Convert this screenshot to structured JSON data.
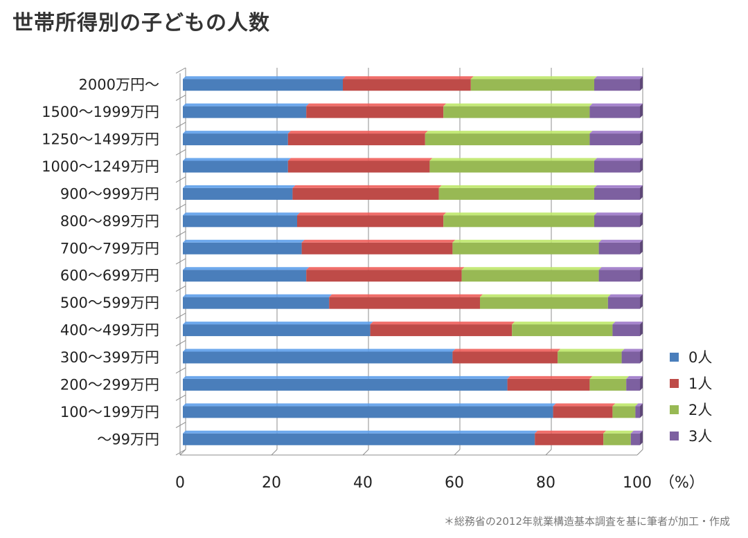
{
  "chart_data": {
    "type": "bar",
    "stacked": true,
    "orientation": "horizontal",
    "title": "世帯所得別の子どもの人数",
    "unit_label": "（%）",
    "xlim": [
      0,
      100
    ],
    "x_ticks": [
      "0",
      "20",
      "40",
      "60",
      "80",
      "100"
    ],
    "grid": true,
    "legend_position": "right",
    "categories": [
      "2000万円～",
      "1500～1999万円",
      "1250～1499万円",
      "1000～1249万円",
      "900～999万円",
      "800～899万円",
      "700～799万円",
      "600～699万円",
      "500～599万円",
      "400～499万円",
      "300～399万円",
      "200～299万円",
      "100～199万円",
      "～99万円"
    ],
    "series": [
      {
        "name": "0人",
        "color": "#4a7ebb",
        "values": [
          35,
          27,
          23,
          23,
          24,
          25,
          26,
          27,
          32,
          41,
          59,
          71,
          81,
          77
        ]
      },
      {
        "name": "1人",
        "color": "#be4b48",
        "values": [
          28,
          30,
          30,
          31,
          32,
          32,
          33,
          34,
          33,
          31,
          23,
          18,
          13,
          15
        ]
      },
      {
        "name": "2人",
        "color": "#98b954",
        "values": [
          27,
          32,
          36,
          36,
          34,
          33,
          32,
          30,
          28,
          22,
          14,
          8,
          5,
          6
        ]
      },
      {
        "name": "3人",
        "color": "#7d60a0",
        "values": [
          10,
          11,
          11,
          10,
          10,
          10,
          9,
          9,
          7,
          6,
          4,
          3,
          1,
          2
        ]
      }
    ]
  },
  "source_note": "＊総務省の2012年就業構造基本調査を基に筆者が加工・作成"
}
